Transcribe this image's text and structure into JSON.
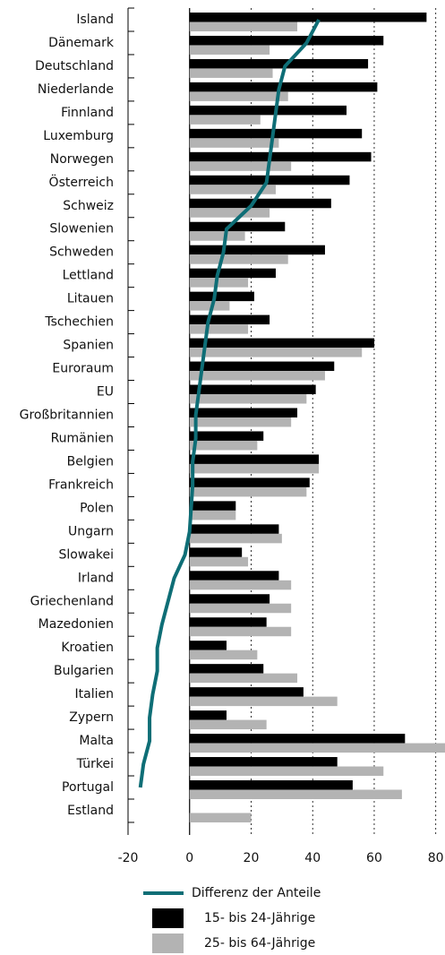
{
  "chart_data": {
    "type": "bar",
    "orientation": "horizontal",
    "categories": [
      "Island",
      "Dänemark",
      "Deutschland",
      "Niederlande",
      "Finnland",
      "Luxemburg",
      "Norwegen",
      "Österreich",
      "Schweiz",
      "Slowenien",
      "Schweden",
      "Lettland",
      "Litauen",
      "Tschechien",
      "Spanien",
      "Euroraum",
      "EU",
      "Großbritannien",
      "Rumänien",
      "Belgien",
      "Frankreich",
      "Polen",
      "Ungarn",
      "Slowakei",
      "Irland",
      "Griechenland",
      "Mazedonien",
      "Kroatien",
      "Bulgarien",
      "Italien",
      "Zypern",
      "Malta",
      "Türkei",
      "Portugal",
      "Estland"
    ],
    "series": [
      {
        "name": "Differenz der Anteile",
        "type": "line",
        "color": "#0e6e76",
        "values": [
          42,
          38,
          31,
          29,
          28,
          27,
          26,
          25,
          20,
          12,
          11,
          9,
          8,
          6,
          5,
          4,
          3,
          2,
          2,
          1,
          1,
          0.5,
          0,
          -1.5,
          -5,
          -7,
          -9,
          -10.5,
          -10.5,
          -12,
          -13,
          -13,
          -15,
          -16,
          null
        ]
      },
      {
        "name": "15- bis 24-Jährige",
        "type": "bar",
        "color": "#000000",
        "values": [
          77,
          63,
          58,
          61,
          51,
          56,
          59,
          52,
          46,
          31,
          44,
          28,
          21,
          26,
          60,
          47,
          41,
          35,
          24,
          42,
          39,
          15,
          29,
          17,
          29,
          26,
          25,
          12,
          24,
          37,
          12,
          70,
          48,
          53,
          null
        ]
      },
      {
        "name": "25- bis 64-Jährige",
        "type": "bar",
        "color": "#b3b3b3",
        "values": [
          35,
          26,
          27,
          32,
          23,
          29,
          33,
          28,
          26,
          18,
          32,
          19,
          13,
          19,
          56,
          44,
          38,
          33,
          22,
          42,
          38,
          15,
          30,
          19,
          33,
          33,
          33,
          22,
          35,
          48,
          25,
          83,
          63,
          69,
          20
        ]
      }
    ],
    "xlim": [
      -20,
      83
    ],
    "xticks": [
      -20,
      0,
      20,
      40,
      60,
      80
    ]
  }
}
